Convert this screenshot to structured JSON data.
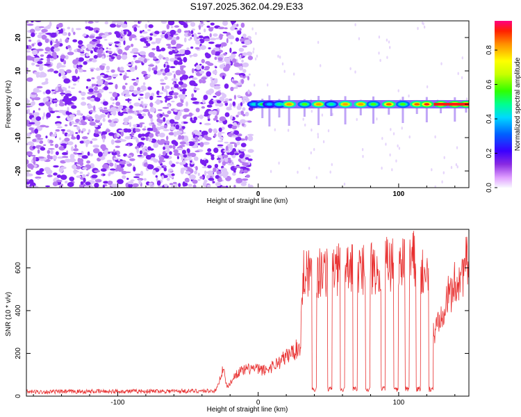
{
  "title": "S197.2025.362.04.29.E33",
  "chart_data": [
    {
      "type": "heatmap",
      "xlabel": "Height of straight line (km)",
      "ylabel": "Frequency (Hz)",
      "xlim": [
        -165,
        150
      ],
      "ylim": [
        -25,
        25
      ],
      "xticks": [
        "-100",
        "0",
        "100"
      ],
      "yticks": [
        "20",
        "10",
        "0",
        "-10",
        "-20"
      ],
      "colorbar": {
        "label": "Normalized spectral amplitude",
        "range": [
          0,
          0.97
        ],
        "ticks": [
          "0.0",
          "0.2",
          "0.4",
          "0.6",
          "0.8"
        ]
      },
      "noise_region_x": [
        -165,
        -5
      ],
      "signal_ridge_freq_hz": 0,
      "signal_bursts_x": [
        -3,
        3,
        8,
        15,
        22,
        33,
        43,
        52,
        62,
        73,
        82,
        93,
        103,
        113,
        120,
        130,
        140,
        148
      ],
      "signal_bursts_amp": [
        0.45,
        0.55,
        0.4,
        0.5,
        0.85,
        0.6,
        0.85,
        0.5,
        0.85,
        0.85,
        0.6,
        0.9,
        0.6,
        0.9,
        0.95,
        0.95,
        0.97,
        0.97
      ]
    },
    {
      "type": "line",
      "xlabel": "Height of straight line (km)",
      "ylabel": "SNR (10 * v/v)",
      "xlim": [
        -165,
        150
      ],
      "ylim": [
        0,
        780
      ],
      "xticks": [
        "-100",
        "0",
        "100"
      ],
      "yticks": [
        "0",
        "200",
        "400",
        "600"
      ],
      "color": "#e83030",
      "series_keypoints": {
        "x": [
          -165,
          -30,
          -25,
          -22,
          -15,
          -5,
          5,
          15,
          25,
          30,
          32,
          34,
          40,
          50,
          60,
          70,
          80,
          90,
          100,
          110,
          120,
          125,
          130,
          140,
          150
        ],
        "y": [
          20,
          25,
          130,
          40,
          110,
          130,
          120,
          160,
          210,
          230,
          580,
          600,
          560,
          600,
          580,
          590,
          600,
          620,
          610,
          640,
          560,
          280,
          400,
          520,
          640
        ]
      },
      "dips_to_baseline_x": [
        40,
        51,
        60,
        69,
        78,
        89,
        98,
        106,
        114,
        123
      ]
    }
  ]
}
